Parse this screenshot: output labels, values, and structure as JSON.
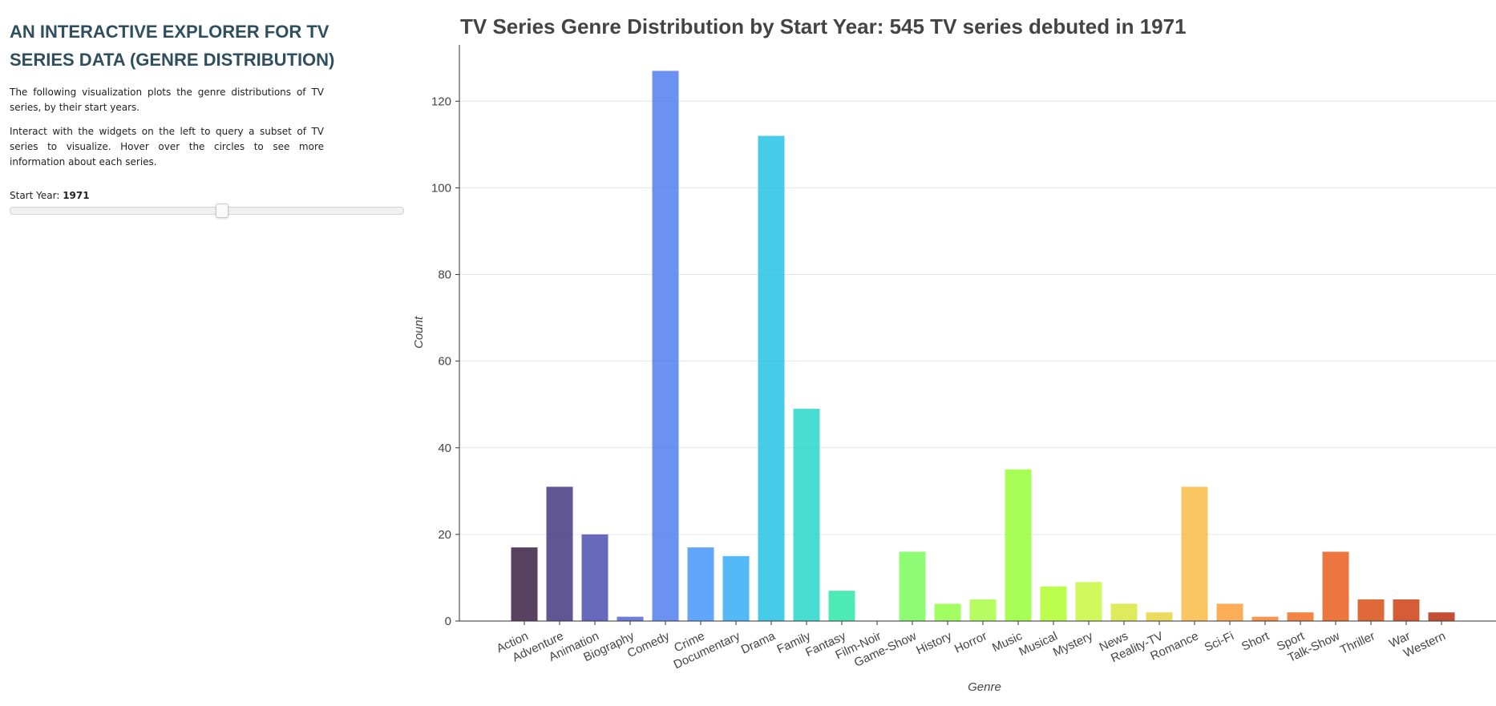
{
  "sidebar": {
    "title": "AN INTERACTIVE EXPLORER FOR TV SERIES DATA (GENRE DISTRIBUTION)",
    "description_1": "The following visualization plots the genre distributions of TV series, by their start years.",
    "description_2": "Interact with the widgets on the left to query a subset of TV series to visualize. Hover over the circles to see more information about each series.",
    "slider_label": "Start Year:",
    "slider_value": "1971",
    "slider_position_fraction": 0.54
  },
  "chart_data": {
    "type": "bar",
    "title": "TV Series Genre Distribution by Start Year: 545 TV series debuted in 1971",
    "xlabel": "Genre",
    "ylabel": "Count",
    "ylim": [
      0,
      133
    ],
    "yticks": [
      0,
      20,
      40,
      60,
      80,
      100,
      120
    ],
    "grid": "horizontal",
    "categories": [
      "Action",
      "Adventure",
      "Animation",
      "Biography",
      "Comedy",
      "Crime",
      "Documentary",
      "Drama",
      "Family",
      "Fantasy",
      "Film-Noir",
      "Game-Show",
      "History",
      "Horror",
      "Music",
      "Musical",
      "Mystery",
      "News",
      "Reality-TV",
      "Romance",
      "Sci-Fi",
      "Short",
      "Sport",
      "Talk-Show",
      "Thriller",
      "War",
      "Western"
    ],
    "values": [
      17,
      31,
      20,
      1,
      127,
      17,
      15,
      112,
      49,
      7,
      0,
      16,
      4,
      5,
      35,
      8,
      9,
      4,
      2,
      31,
      4,
      1,
      2,
      16,
      5,
      5,
      2
    ],
    "colors": [
      "#30123b",
      "#3a2c79",
      "#4145ab",
      "#4a5dd0",
      "#4675ed",
      "#3b8ffc",
      "#28a8f5",
      "#18bfe3",
      "#1cd4c7",
      "#22e5a3",
      "#3ff27c",
      "#72fd53",
      "#89ff39",
      "#a4fc3c",
      "#91ff2b",
      "#adfc22",
      "#c3f734",
      "#d5e634",
      "#e6d135",
      "#f8b83a",
      "#fa9a2d",
      "#f87b23",
      "#f06818",
      "#e8530f",
      "#d84409",
      "#c93506",
      "#b42303"
    ]
  }
}
